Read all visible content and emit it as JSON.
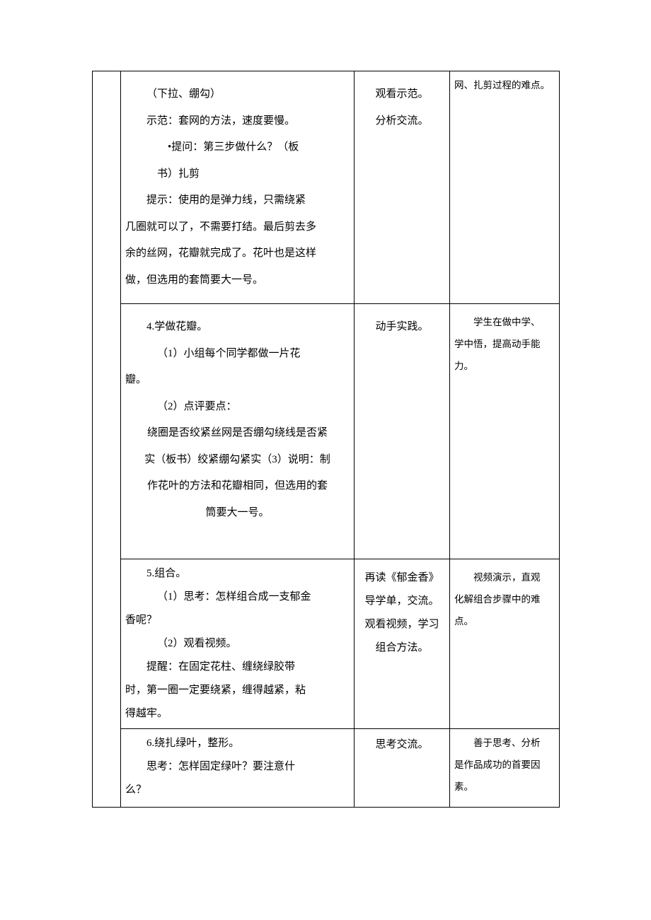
{
  "rows": [
    {
      "teacher": {
        "l1": "（下拉、绷勾）",
        "l2": "示范：套网的方法，速度要慢。",
        "l3": "•提问：第三步做什么？（板",
        "l4": "书）扎剪",
        "l5": "提示：使用的是弹力线，只需绕紧",
        "l6": "几圈就可以了，不需要打结。最后剪去多",
        "l7": "余的丝网，花瓣就完成了。花叶也是这样",
        "l8": "做，但选用的套筒要大一号。"
      },
      "student": {
        "s1": "观看示范。",
        "s2": "分析交流。"
      },
      "intent": {
        "d1": "网、扎剪过程的难点。"
      }
    },
    {
      "teacher": {
        "l1": "4.学做花瓣。",
        "l2": "（1）小组每个同学都做一片花",
        "l3": "瓣。",
        "l4": "（2）点评要点：",
        "l5": "绕圈是否绞紧丝网是否绷勾绕线是否紧",
        "l6": "实（板书）绞紧绷勾紧实（3）说明：制",
        "l7": "作花叶的方法和花瓣相同，但选用的套",
        "l8": "筒要大一号。"
      },
      "student": {
        "s1": "动手实践。"
      },
      "intent": {
        "d1": "学生在做中学、",
        "d2": "学中悟，提高动手能",
        "d3": "力。"
      }
    },
    {
      "teacher": {
        "l1": "5.组合。",
        "l2": "（1）思考：怎样组合成一支郁金",
        "l3": "香呢？",
        "l4": "（2）观看视频。",
        "l5": "提醒：在固定花柱、缠绕绿胶带",
        "l6": "时，第一圈一定要绕紧，缠得越紧，粘",
        "l7": "得越牢。"
      },
      "student": {
        "s1": "再读《郁金香》",
        "s2": "导学单，交流。",
        "s3": "观看视频，学习",
        "s4": "组合方法。"
      },
      "intent": {
        "d1": "视频演示，直观",
        "d2": "化解组合步骤中的难",
        "d3": "点。"
      }
    },
    {
      "teacher": {
        "l1": "6.绕扎绿叶，整形。",
        "l2": "思考：怎样固定绿叶？要注意什",
        "l3": "么？"
      },
      "student": {
        "s1": "思考交流。"
      },
      "intent": {
        "d1": "善于思考、分析",
        "d2": "是作品成功的首要因",
        "d3": "素。"
      }
    }
  ]
}
